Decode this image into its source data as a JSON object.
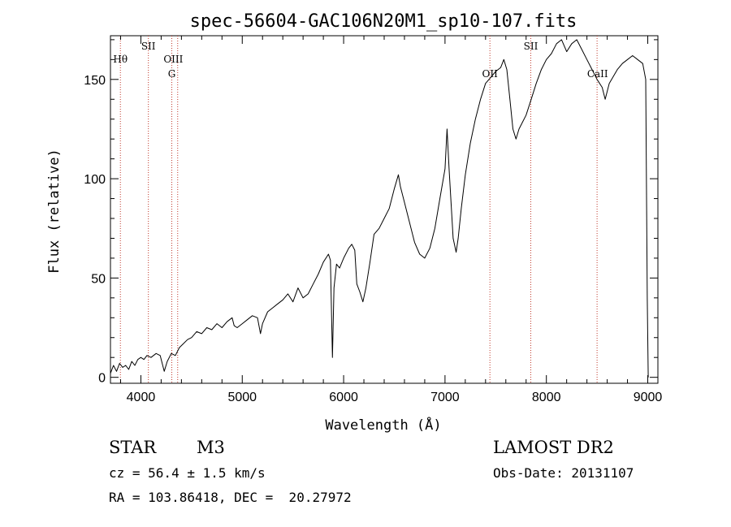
{
  "chart_data": {
    "type": "line",
    "title": "spec-56604-GAC106N20M1_sp10-107.fits",
    "xlabel": "Wavelength (Å)",
    "ylabel": "Flux (relative)",
    "xlim": [
      3700,
      9100
    ],
    "ylim": [
      -3,
      172
    ],
    "xticks": [
      4000,
      5000,
      6000,
      7000,
      8000,
      9000
    ],
    "yticks": [
      0,
      50,
      100,
      150
    ],
    "grid": false,
    "series": [
      {
        "points": [
          [
            3700,
            2
          ],
          [
            3730,
            6
          ],
          [
            3760,
            3
          ],
          [
            3790,
            7
          ],
          [
            3820,
            5
          ],
          [
            3850,
            6
          ],
          [
            3880,
            4
          ],
          [
            3910,
            8
          ],
          [
            3940,
            6
          ],
          [
            3970,
            9
          ],
          [
            4000,
            10
          ],
          [
            4030,
            9
          ],
          [
            4060,
            11
          ],
          [
            4100,
            10
          ],
          [
            4150,
            12
          ],
          [
            4190,
            11
          ],
          [
            4210,
            7
          ],
          [
            4230,
            3
          ],
          [
            4260,
            8
          ],
          [
            4300,
            12
          ],
          [
            4340,
            11
          ],
          [
            4380,
            15
          ],
          [
            4420,
            17
          ],
          [
            4460,
            19
          ],
          [
            4500,
            20
          ],
          [
            4550,
            23
          ],
          [
            4600,
            22
          ],
          [
            4650,
            25
          ],
          [
            4700,
            24
          ],
          [
            4750,
            27
          ],
          [
            4800,
            25
          ],
          [
            4850,
            28
          ],
          [
            4900,
            30
          ],
          [
            4920,
            26
          ],
          [
            4950,
            25
          ],
          [
            5000,
            27
          ],
          [
            5050,
            29
          ],
          [
            5100,
            31
          ],
          [
            5150,
            30
          ],
          [
            5180,
            22
          ],
          [
            5200,
            27
          ],
          [
            5250,
            33
          ],
          [
            5300,
            35
          ],
          [
            5350,
            37
          ],
          [
            5400,
            39
          ],
          [
            5450,
            42
          ],
          [
            5500,
            38
          ],
          [
            5550,
            45
          ],
          [
            5600,
            40
          ],
          [
            5650,
            42
          ],
          [
            5700,
            47
          ],
          [
            5750,
            52
          ],
          [
            5800,
            58
          ],
          [
            5850,
            62
          ],
          [
            5870,
            59
          ],
          [
            5890,
            10
          ],
          [
            5905,
            45
          ],
          [
            5930,
            57
          ],
          [
            5960,
            55
          ],
          [
            6000,
            60
          ],
          [
            6050,
            65
          ],
          [
            6080,
            67
          ],
          [
            6110,
            64
          ],
          [
            6130,
            47
          ],
          [
            6160,
            43
          ],
          [
            6190,
            38
          ],
          [
            6220,
            45
          ],
          [
            6260,
            58
          ],
          [
            6300,
            72
          ],
          [
            6350,
            75
          ],
          [
            6400,
            80
          ],
          [
            6450,
            85
          ],
          [
            6500,
            95
          ],
          [
            6540,
            102
          ],
          [
            6560,
            96
          ],
          [
            6600,
            88
          ],
          [
            6650,
            78
          ],
          [
            6700,
            68
          ],
          [
            6750,
            62
          ],
          [
            6800,
            60
          ],
          [
            6850,
            65
          ],
          [
            6900,
            75
          ],
          [
            6950,
            90
          ],
          [
            7000,
            105
          ],
          [
            7020,
            125
          ],
          [
            7040,
            105
          ],
          [
            7080,
            70
          ],
          [
            7110,
            63
          ],
          [
            7130,
            70
          ],
          [
            7160,
            85
          ],
          [
            7200,
            102
          ],
          [
            7250,
            118
          ],
          [
            7300,
            130
          ],
          [
            7350,
            140
          ],
          [
            7400,
            148
          ],
          [
            7450,
            151
          ],
          [
            7500,
            154
          ],
          [
            7550,
            156
          ],
          [
            7580,
            160
          ],
          [
            7610,
            155
          ],
          [
            7640,
            140
          ],
          [
            7670,
            125
          ],
          [
            7700,
            120
          ],
          [
            7730,
            125
          ],
          [
            7760,
            128
          ],
          [
            7800,
            132
          ],
          [
            7850,
            140
          ],
          [
            7900,
            148
          ],
          [
            7950,
            155
          ],
          [
            8000,
            160
          ],
          [
            8050,
            163
          ],
          [
            8100,
            168
          ],
          [
            8150,
            170
          ],
          [
            8200,
            164
          ],
          [
            8250,
            168
          ],
          [
            8300,
            170
          ],
          [
            8350,
            165
          ],
          [
            8400,
            160
          ],
          [
            8450,
            155
          ],
          [
            8500,
            150
          ],
          [
            8550,
            146
          ],
          [
            8580,
            140
          ],
          [
            8620,
            148
          ],
          [
            8700,
            155
          ],
          [
            8750,
            158
          ],
          [
            8800,
            160
          ],
          [
            8850,
            162
          ],
          [
            8900,
            160
          ],
          [
            8950,
            158
          ],
          [
            8980,
            150
          ],
          [
            8995,
            40
          ],
          [
            9005,
            0
          ]
        ]
      }
    ],
    "annotations": [
      {
        "label": "Hθ",
        "x": 3798,
        "row": 1
      },
      {
        "label": "SII",
        "x": 4074,
        "row": 0
      },
      {
        "label": "OIII",
        "x": 4320,
        "row": 1
      },
      {
        "label": "G",
        "x": 4305,
        "row": 2
      },
      {
        "label": "OII",
        "x": 7443,
        "row": 3
      },
      {
        "label": "SII",
        "x": 7846,
        "row": 0
      },
      {
        "label": "CaII",
        "x": 8505,
        "row": 3
      }
    ],
    "vlines": [
      3798,
      4074,
      4305,
      4363,
      7443,
      7846,
      8500
    ]
  },
  "info": {
    "object_class": "STAR",
    "subclass": "M3",
    "survey": "LAMOST DR2",
    "redshift": "cz = 56.4 ± 1.5 km/s",
    "obs_date": "Obs-Date: 20131107",
    "coords": "RA = 103.86418, DEC =  20.27972"
  }
}
